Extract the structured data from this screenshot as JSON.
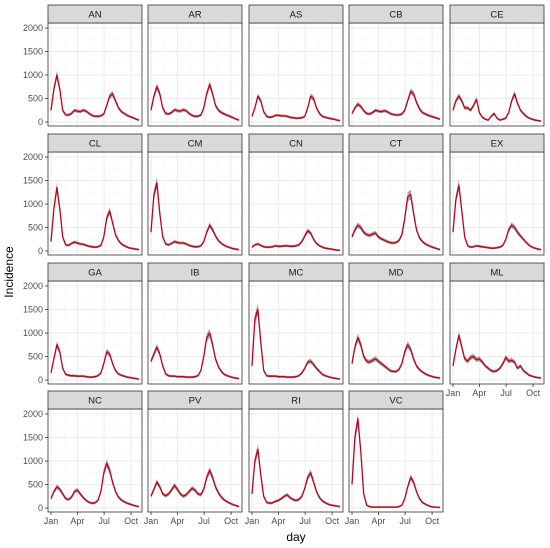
{
  "chart_data": {
    "type": "line",
    "layout": "facet-grid",
    "xlabel": "day",
    "ylabel": "Incidence",
    "ylim": [
      0,
      2000
    ],
    "yticks": [
      0,
      500,
      1000,
      1500,
      2000
    ],
    "y_tick_labels": [
      "0",
      "500",
      "1000",
      "1500",
      "2000"
    ],
    "xlim_days": [
      0,
      300
    ],
    "xticks_days": [
      0,
      90,
      181,
      273
    ],
    "x_tick_labels": [
      "Jan",
      "Apr",
      "Jul",
      "Oct"
    ],
    "grid": true,
    "colors": {
      "line": "#c0001a",
      "ribbon": "#5a5a5a",
      "strip_bg": "#d9d9d9",
      "border": "#333333",
      "grid_major": "#ebebeb",
      "grid_minor": "#f6f6f6"
    },
    "x_days": [
      0,
      10,
      20,
      30,
      40,
      50,
      60,
      70,
      80,
      90,
      100,
      110,
      120,
      130,
      140,
      150,
      160,
      170,
      180,
      190,
      200,
      210,
      220,
      230,
      240,
      250,
      260,
      270,
      280,
      290,
      300
    ],
    "panels": [
      {
        "label": "AN",
        "values": [
          250,
          700,
          1000,
          700,
          250,
          150,
          150,
          180,
          250,
          230,
          220,
          250,
          230,
          180,
          140,
          120,
          120,
          130,
          170,
          350,
          550,
          600,
          450,
          300,
          220,
          180,
          140,
          110,
          90,
          60,
          40
        ]
      },
      {
        "label": "AR",
        "values": [
          250,
          550,
          750,
          600,
          300,
          180,
          170,
          200,
          260,
          240,
          230,
          260,
          240,
          180,
          140,
          120,
          120,
          150,
          300,
          600,
          800,
          600,
          350,
          250,
          200,
          170,
          140,
          120,
          90,
          60,
          40
        ]
      },
      {
        "label": "AS",
        "values": [
          120,
          300,
          550,
          450,
          220,
          120,
          100,
          110,
          140,
          140,
          130,
          130,
          120,
          100,
          90,
          80,
          80,
          90,
          120,
          300,
          550,
          500,
          300,
          180,
          120,
          100,
          80,
          70,
          60,
          40,
          30
        ]
      },
      {
        "label": "CB",
        "values": [
          180,
          300,
          380,
          330,
          240,
          180,
          170,
          200,
          250,
          230,
          220,
          240,
          220,
          180,
          160,
          150,
          150,
          170,
          250,
          450,
          650,
          600,
          420,
          280,
          200,
          170,
          140,
          120,
          100,
          80,
          60
        ]
      },
      {
        "label": "CE",
        "values": [
          250,
          450,
          550,
          450,
          300,
          300,
          250,
          350,
          480,
          200,
          100,
          60,
          40,
          120,
          180,
          80,
          40,
          60,
          80,
          200,
          450,
          600,
          400,
          250,
          180,
          120,
          80,
          60,
          40,
          30,
          20
        ]
      },
      {
        "label": "CL",
        "values": [
          200,
          900,
          1350,
          900,
          300,
          130,
          120,
          160,
          190,
          170,
          150,
          140,
          120,
          100,
          90,
          80,
          90,
          120,
          300,
          700,
          850,
          600,
          350,
          220,
          150,
          110,
          80,
          60,
          50,
          40,
          30
        ]
      },
      {
        "label": "CM",
        "values": [
          400,
          1200,
          1450,
          800,
          300,
          150,
          130,
          160,
          200,
          180,
          170,
          170,
          150,
          120,
          100,
          90,
          90,
          110,
          200,
          400,
          550,
          450,
          320,
          220,
          160,
          120,
          90,
          70,
          50,
          40,
          30
        ]
      },
      {
        "label": "CN",
        "values": [
          80,
          130,
          150,
          120,
          90,
          80,
          80,
          90,
          110,
          100,
          100,
          110,
          110,
          100,
          100,
          110,
          130,
          200,
          320,
          430,
          380,
          250,
          160,
          110,
          80,
          60,
          50,
          40,
          30,
          20,
          15
        ]
      },
      {
        "label": "CT",
        "values": [
          300,
          450,
          550,
          500,
          400,
          350,
          330,
          360,
          380,
          300,
          260,
          230,
          200,
          180,
          170,
          180,
          220,
          350,
          700,
          1150,
          1200,
          800,
          450,
          280,
          200,
          150,
          120,
          90,
          70,
          50,
          30
        ]
      },
      {
        "label": "EX",
        "values": [
          400,
          1100,
          1400,
          850,
          300,
          110,
          80,
          90,
          110,
          100,
          90,
          80,
          70,
          60,
          60,
          70,
          80,
          120,
          250,
          450,
          550,
          500,
          400,
          320,
          250,
          180,
          120,
          80,
          60,
          40,
          30
        ]
      },
      {
        "label": "GA",
        "values": [
          150,
          450,
          750,
          600,
          250,
          120,
          100,
          90,
          90,
          80,
          80,
          80,
          70,
          60,
          60,
          70,
          90,
          150,
          350,
          600,
          550,
          350,
          200,
          130,
          100,
          80,
          60,
          50,
          40,
          30,
          20
        ]
      },
      {
        "label": "IB",
        "values": [
          400,
          550,
          700,
          550,
          300,
          130,
          90,
          80,
          80,
          70,
          70,
          70,
          60,
          60,
          60,
          70,
          90,
          200,
          500,
          900,
          1000,
          750,
          450,
          280,
          180,
          120,
          90,
          70,
          50,
          40,
          30
        ]
      },
      {
        "label": "MC",
        "values": [
          300,
          1300,
          1500,
          800,
          200,
          90,
          80,
          80,
          80,
          70,
          70,
          70,
          60,
          60,
          60,
          70,
          90,
          150,
          250,
          380,
          400,
          330,
          250,
          180,
          120,
          90,
          70,
          50,
          40,
          30,
          20
        ]
      },
      {
        "label": "MD",
        "values": [
          350,
          700,
          900,
          750,
          500,
          400,
          380,
          420,
          450,
          400,
          350,
          300,
          250,
          200,
          180,
          180,
          220,
          350,
          600,
          750,
          650,
          450,
          300,
          220,
          170,
          130,
          100,
          80,
          60,
          50,
          40
        ]
      },
      {
        "label": "ML",
        "values": [
          300,
          650,
          950,
          700,
          450,
          400,
          480,
          500,
          430,
          450,
          380,
          300,
          250,
          200,
          180,
          200,
          250,
          350,
          480,
          400,
          420,
          380,
          250,
          300,
          200,
          150,
          100,
          80,
          60,
          50,
          40
        ]
      },
      {
        "label": "NC",
        "values": [
          200,
          350,
          450,
          400,
          300,
          200,
          180,
          230,
          350,
          380,
          300,
          220,
          160,
          120,
          100,
          110,
          160,
          350,
          750,
          950,
          800,
          550,
          350,
          230,
          170,
          130,
          100,
          80,
          60,
          40,
          30
        ]
      },
      {
        "label": "PV",
        "values": [
          250,
          400,
          550,
          450,
          300,
          260,
          300,
          380,
          480,
          400,
          300,
          250,
          280,
          350,
          420,
          380,
          300,
          280,
          400,
          650,
          800,
          650,
          450,
          320,
          230,
          170,
          130,
          100,
          70,
          50,
          30
        ]
      },
      {
        "label": "RI",
        "values": [
          300,
          1000,
          1250,
          700,
          250,
          120,
          100,
          110,
          140,
          160,
          200,
          250,
          280,
          220,
          180,
          160,
          180,
          250,
          420,
          650,
          750,
          550,
          350,
          220,
          150,
          110,
          80,
          60,
          50,
          40,
          30
        ]
      },
      {
        "label": "VC",
        "values": [
          500,
          1500,
          1900,
          1200,
          300,
          60,
          30,
          20,
          20,
          20,
          20,
          20,
          20,
          20,
          20,
          20,
          30,
          60,
          200,
          450,
          650,
          550,
          350,
          200,
          120,
          80,
          50,
          30,
          20,
          15,
          10
        ]
      }
    ]
  }
}
